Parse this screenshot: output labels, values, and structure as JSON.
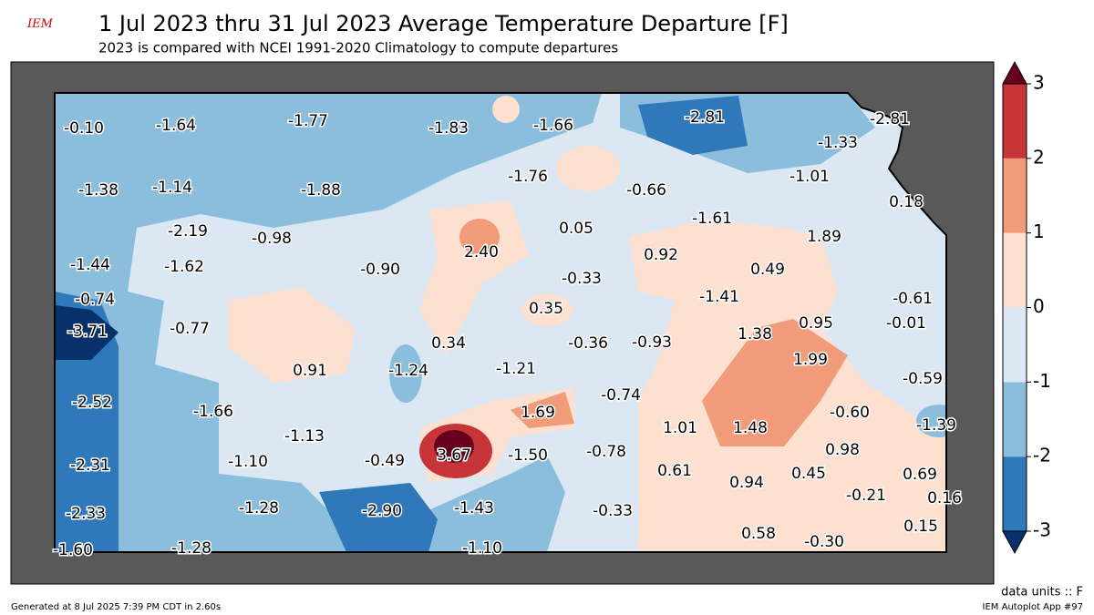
{
  "title": "1 Jul 2023 thru 31 Jul 2023 Average Temperature Departure [F]",
  "subtitle": "2023 is compared with NCEI 1991-2020 Climatology to compute departures",
  "logo": "IEM",
  "units_note": "data units :: F",
  "generated": "Generated at 8 Jul 2025 7:39 PM CDT in 2.60s",
  "app": "IEM Autoplot App #97",
  "colorbar": {
    "ticks": [
      -3,
      -2,
      -1,
      0,
      1,
      2,
      3
    ],
    "colors": [
      "#08306b",
      "#2f78b9",
      "#8bbddc",
      "#dbe8f3",
      "#fde0d0",
      "#f19b7b",
      "#c7343a",
      "#67001f"
    ]
  },
  "station_values": [
    "-0.10",
    "-1.64",
    "-1.77",
    "-1.83",
    "-1.66",
    "-2.81",
    "-2.81",
    "-1.33",
    "-1.38",
    "-1.14",
    "-1.88",
    "-1.76",
    "-0.66",
    "-1.01",
    "0.18",
    "-2.19",
    "-0.98",
    "-1.61",
    "0.05",
    "-1.44",
    "-1.62",
    "-0.90",
    "2.40",
    "0.92",
    "1.89",
    "0.49",
    "-0.74",
    "-0.33",
    "-1.41",
    "-0.61",
    "0.35",
    "-3.71",
    "-0.77",
    "0.95",
    "-0.01",
    "0.34",
    "-0.36",
    "-0.93",
    "1.38",
    "0.91",
    "-1.24",
    "-1.21",
    "1.99",
    "-0.59",
    "-2.52",
    "-0.74",
    "1.69",
    "-1.66",
    "-0.60",
    "-1.39",
    "1.01",
    "1.48",
    "-1.13",
    "3.67",
    "-1.50",
    "-0.78",
    "0.98",
    "-0.49",
    "-1.10",
    "-2.31",
    "0.61",
    "0.45",
    "0.69",
    "0.94",
    "-0.21",
    "0.16",
    "-1.28",
    "-2.90",
    "-1.43",
    "-0.33",
    "-2.33",
    "0.15",
    "0.58",
    "-0.30",
    "-1.60",
    "-1.28",
    "-1.10"
  ]
}
